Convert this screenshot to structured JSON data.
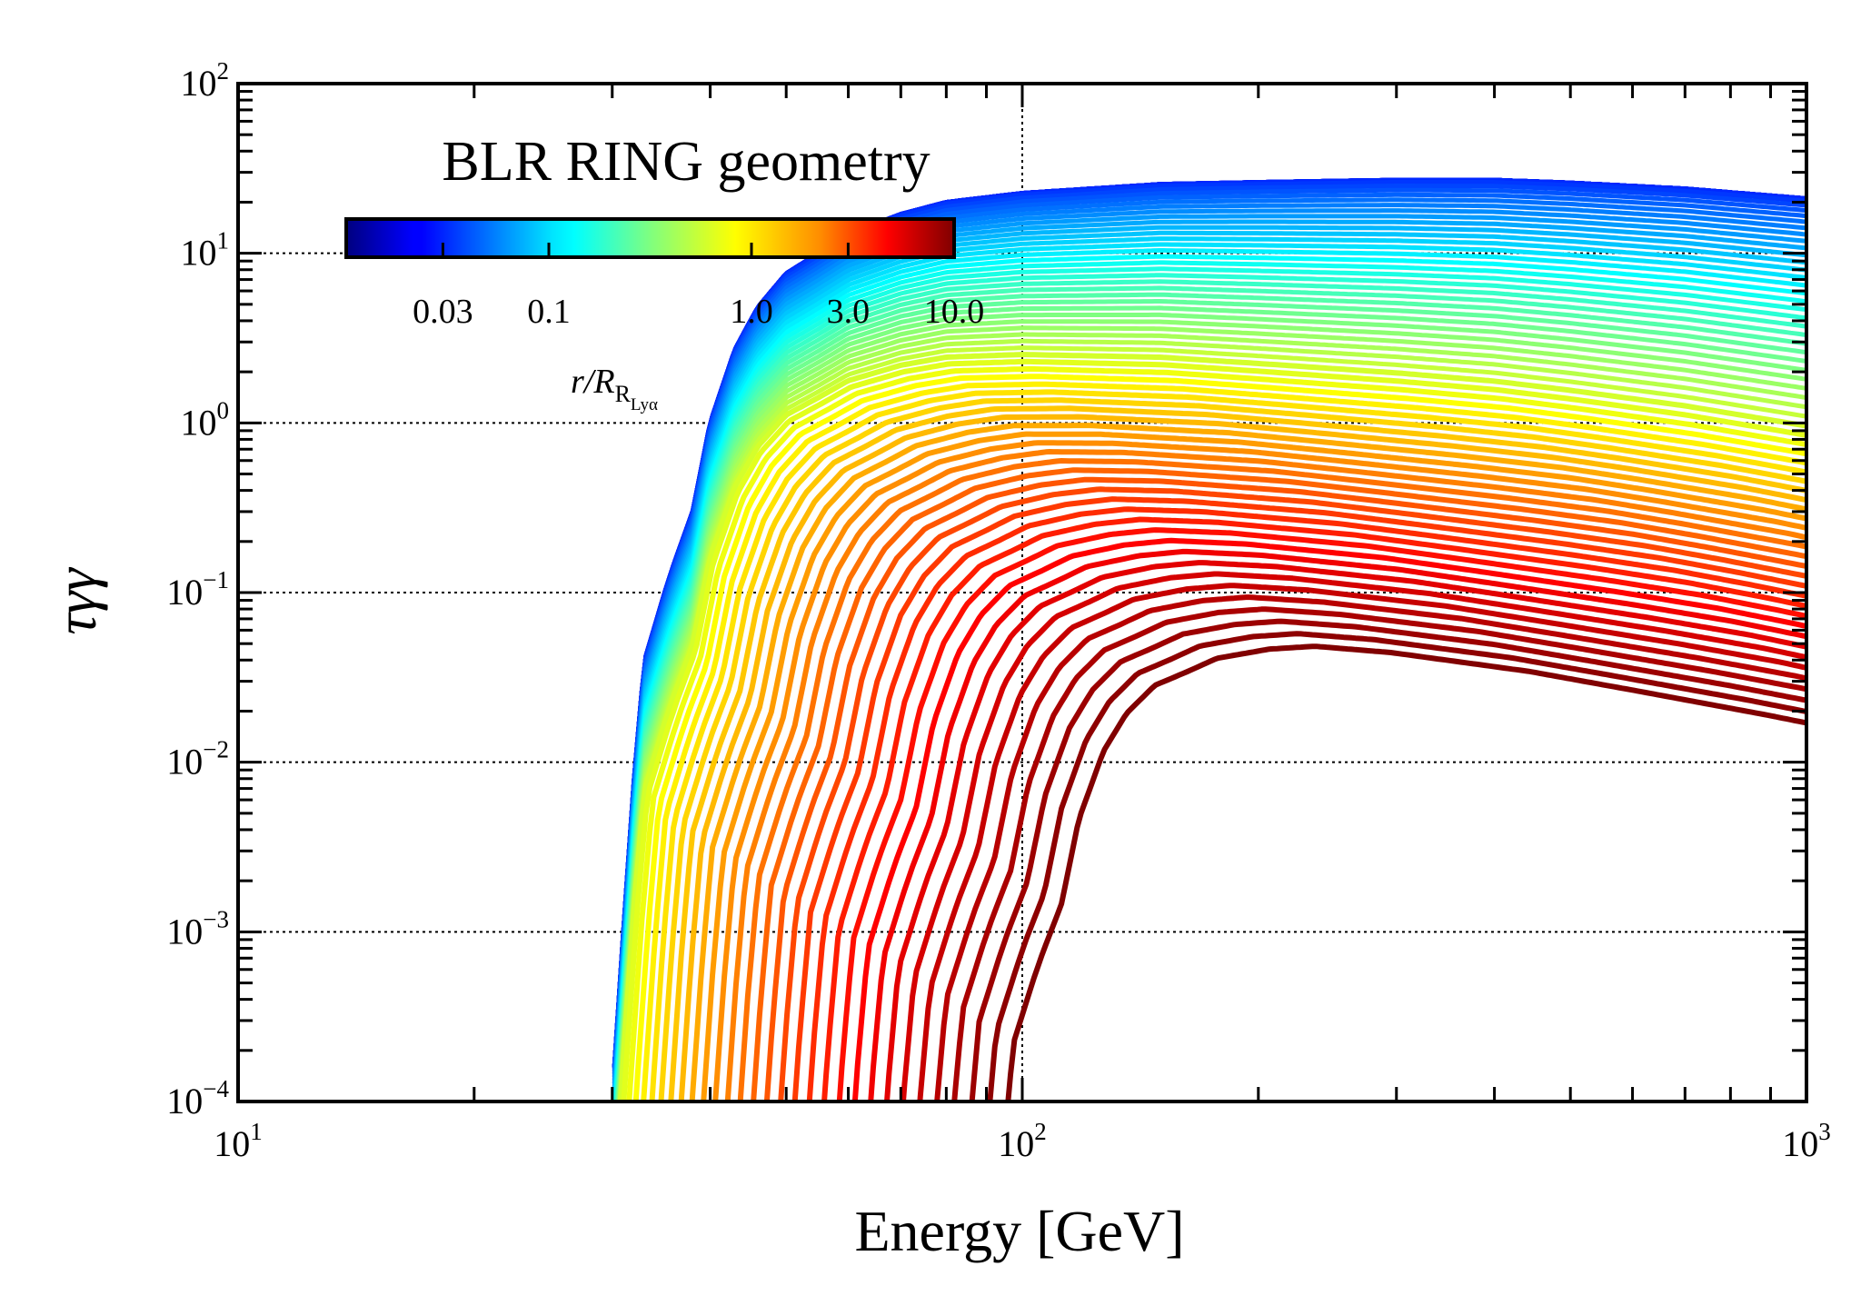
{
  "chart_data": {
    "type": "line",
    "title": "BLR RING geometry",
    "xlabel": "Energy [GeV]",
    "ylabel": "τγγ",
    "xscale": "log",
    "yscale": "log",
    "xlim": [
      10,
      1000
    ],
    "ylim": [
      0.0001,
      100
    ],
    "x_ticks": [
      {
        "base": "10",
        "exp": "1"
      },
      {
        "base": "10",
        "exp": "2"
      },
      {
        "base": "10",
        "exp": "3"
      }
    ],
    "y_ticks": [
      {
        "base": "10",
        "exp": "−4"
      },
      {
        "base": "10",
        "exp": "−3"
      },
      {
        "base": "10",
        "exp": "−2"
      },
      {
        "base": "10",
        "exp": "−1"
      },
      {
        "base": "10",
        "exp": "0"
      },
      {
        "base": "10",
        "exp": "1"
      },
      {
        "base": "10",
        "exp": "2"
      }
    ],
    "grid": "dotted at major ticks",
    "colorbar": {
      "colormap": "jet",
      "scale": "log",
      "range": [
        0.01,
        10.0
      ],
      "tick_values": [
        0.03,
        0.1,
        1.0,
        3.0,
        10.0
      ],
      "tick_labels": [
        "0.03",
        "0.1",
        "1.0",
        "3.0",
        "10.0"
      ],
      "label_main": "r/R",
      "label_sub": "R",
      "label_subsub": "Lyα",
      "placement": "top-left"
    },
    "curve_family": {
      "count": 70,
      "parameter": "r/R_RLyα",
      "r_range": [
        0.01,
        10.0
      ],
      "shape_note": "Threshold onset near 30–80 GeV rising toward a plateau; optical depth decreases with r",
      "saturated_envelope_x": [
        30,
        31,
        32,
        33,
        35,
        36,
        38,
        40,
        43,
        46,
        50,
        55,
        60,
        70,
        80,
        100,
        150,
        200,
        300,
        400,
        500,
        700,
        1000
      ],
      "saturated_envelope_y": [
        0.0001,
        0.001,
        0.008,
        0.04,
        0.1,
        0.15,
        0.3,
        1.0,
        2.7,
        4.8,
        7.6,
        10.0,
        13.0,
        17.0,
        20.0,
        22.6,
        25.5,
        26.2,
        27.0,
        27.0,
        26.0,
        24.0,
        21.0
      ]
    }
  }
}
